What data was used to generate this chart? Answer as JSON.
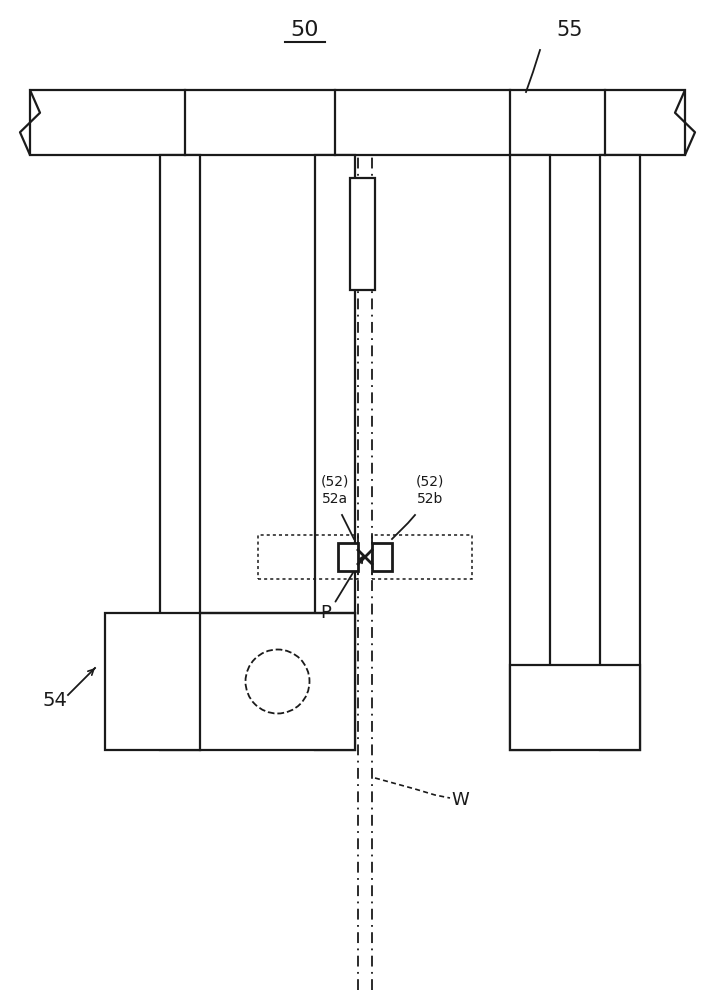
{
  "bg_color": "#ffffff",
  "line_color": "#1a1a1a",
  "fig_width": 7.15,
  "fig_height": 10.0,
  "dpi": 100,
  "label_50": "50",
  "label_55": "55",
  "label_52a": "(52)\n52a",
  "label_52b": "(52)\n52b",
  "label_54": "54",
  "label_P": "P",
  "label_W": "W"
}
